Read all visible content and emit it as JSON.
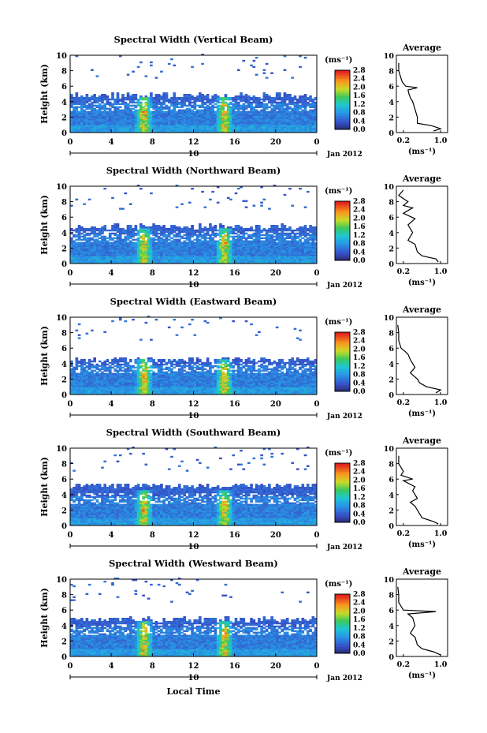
{
  "chart_data": [
    {
      "type": "heatmap",
      "title": "Spectral Width (Vertical Beam)",
      "ylabel": "Height (km)",
      "x_ticks": [
        "0",
        "4",
        "8",
        "12",
        "16",
        "20",
        "0"
      ],
      "y_ticks": [
        "0",
        "2",
        "4",
        "6",
        "8",
        "10"
      ],
      "xlim": [
        0,
        24
      ],
      "ylim": [
        0,
        10
      ],
      "date_marker": "10",
      "date_label": "Jan 2012",
      "colorbar_unit": "(ms⁻¹)",
      "colorbar_ticks": [
        "0.0",
        "0.4",
        "0.8",
        "1.2",
        "1.6",
        "2.0",
        "2.4",
        "2.8"
      ],
      "colorbar_range": [
        0,
        2.8
      ],
      "layer_top_km": 4.5,
      "convective_cells_hours": [
        7.2,
        15.0
      ],
      "average_profile": {
        "title": "Average",
        "xlabel": "(ms⁻¹)",
        "x_ticks": [
          "0.2",
          "1.0"
        ],
        "y_ticks": [
          "0",
          "2",
          "4",
          "6",
          "8",
          "10"
        ],
        "xlim": [
          0.05,
          1.15
        ],
        "ylim": [
          0,
          10
        ],
        "heights": [
          0.2,
          0.5,
          0.9,
          1.2,
          2.0,
          3.0,
          4.0,
          4.5,
          5.0,
          5.5,
          5.8,
          6.0,
          6.5,
          7.0,
          8.0,
          9.0
        ],
        "values": [
          0.85,
          1.0,
          0.8,
          0.5,
          0.5,
          0.45,
          0.4,
          0.35,
          0.32,
          0.3,
          0.5,
          0.25,
          0.18,
          0.15,
          0.1,
          0.1
        ]
      }
    },
    {
      "type": "heatmap",
      "title": "Spectral Width (Northward Beam)",
      "ylabel": "Height (km)",
      "x_ticks": [
        "0",
        "4",
        "8",
        "12",
        "16",
        "20",
        "0"
      ],
      "y_ticks": [
        "0",
        "2",
        "4",
        "6",
        "8",
        "10"
      ],
      "xlim": [
        0,
        24
      ],
      "ylim": [
        0,
        10
      ],
      "date_marker": "10",
      "date_label": "Jan 2012",
      "colorbar_unit": "(ms⁻¹)",
      "colorbar_ticks": [
        "0.0",
        "0.4",
        "0.8",
        "1.2",
        "1.6",
        "2.0",
        "2.4",
        "2.8"
      ],
      "colorbar_range": [
        0,
        2.8
      ],
      "layer_top_km": 4.5,
      "convective_cells_hours": [
        7.2,
        15.0
      ],
      "average_profile": {
        "title": "Average",
        "xlabel": "(ms⁻¹)",
        "x_ticks": [
          "0.2",
          "1.0"
        ],
        "y_ticks": [
          "0",
          "2",
          "4",
          "6",
          "8",
          "10"
        ],
        "xlim": [
          0.05,
          1.15
        ],
        "ylim": [
          0,
          10
        ],
        "heights": [
          0.2,
          0.6,
          1.0,
          1.5,
          2.5,
          3.0,
          4.0,
          5.0,
          5.8,
          6.5,
          7.2,
          7.5,
          8.0,
          8.8,
          9.5
        ],
        "values": [
          0.95,
          0.9,
          0.6,
          0.5,
          0.45,
          0.3,
          0.4,
          0.3,
          0.45,
          0.2,
          0.4,
          0.2,
          0.3,
          0.1,
          0.2
        ]
      }
    },
    {
      "type": "heatmap",
      "title": "Spectral Width (Eastward Beam)",
      "ylabel": "Height (km)",
      "x_ticks": [
        "0",
        "4",
        "8",
        "12",
        "16",
        "20",
        "0"
      ],
      "y_ticks": [
        "0",
        "2",
        "4",
        "6",
        "8",
        "10"
      ],
      "xlim": [
        0,
        24
      ],
      "ylim": [
        0,
        10
      ],
      "date_marker": "10",
      "date_label": "Jan 2012",
      "colorbar_unit": "(ms⁻¹)",
      "colorbar_ticks": [
        "0.0",
        "0.4",
        "0.8",
        "1.2",
        "1.6",
        "2.0",
        "2.4",
        "2.8"
      ],
      "colorbar_range": [
        0,
        2.8
      ],
      "layer_top_km": 4.2,
      "convective_cells_hours": [
        7.2,
        15.0
      ],
      "average_profile": {
        "title": "Average",
        "xlabel": "(ms⁻¹)",
        "x_ticks": [
          "0.2",
          "1.0"
        ],
        "y_ticks": [
          "0",
          "2",
          "4",
          "6",
          "8",
          "10"
        ],
        "xlim": [
          0.05,
          1.15
        ],
        "ylim": [
          0,
          10
        ],
        "heights": [
          0.2,
          0.6,
          1.0,
          1.5,
          2.0,
          2.8,
          3.5,
          4.0,
          4.5,
          5.2,
          5.5,
          6.0,
          7.0,
          8.0,
          9.0
        ],
        "values": [
          0.9,
          1.0,
          0.7,
          0.55,
          0.5,
          0.35,
          0.45,
          0.4,
          0.35,
          0.3,
          0.25,
          0.15,
          0.1,
          0.1,
          0.08
        ]
      }
    },
    {
      "type": "heatmap",
      "title": "Spectral Width (Southward Beam)",
      "ylabel": "Height (km)",
      "x_ticks": [
        "0",
        "4",
        "8",
        "12",
        "16",
        "20",
        "0"
      ],
      "y_ticks": [
        "0",
        "2",
        "4",
        "6",
        "8",
        "10"
      ],
      "xlim": [
        0,
        24
      ],
      "ylim": [
        0,
        10
      ],
      "date_marker": "10",
      "date_label": "Jan 2012",
      "colorbar_unit": "(ms⁻¹)",
      "colorbar_ticks": [
        "0.0",
        "0.4",
        "0.8",
        "1.2",
        "1.6",
        "2.0",
        "2.4",
        "2.8"
      ],
      "colorbar_range": [
        0,
        2.8
      ],
      "layer_top_km": 4.8,
      "convective_cells_hours": [
        7.2,
        15.0
      ],
      "average_profile": {
        "title": "Average",
        "xlabel": "(ms⁻¹)",
        "x_ticks": [
          "0.2",
          "1.0"
        ],
        "y_ticks": [
          "0",
          "2",
          "4",
          "6",
          "8",
          "10"
        ],
        "xlim": [
          0.05,
          1.15
        ],
        "ylim": [
          0,
          10
        ],
        "heights": [
          0.2,
          0.5,
          1.0,
          1.5,
          2.5,
          3.0,
          3.5,
          4.5,
          5.0,
          5.8,
          6.0,
          6.5,
          7.0,
          8.0,
          9.0
        ],
        "values": [
          0.95,
          0.85,
          0.6,
          0.55,
          0.45,
          0.35,
          0.5,
          0.4,
          0.45,
          0.2,
          0.4,
          0.15,
          0.2,
          0.1,
          0.1
        ]
      }
    },
    {
      "type": "heatmap",
      "title": "Spectral Width (Westward Beam)",
      "ylabel": "Height (km)",
      "xlabel": "Local Time",
      "x_ticks": [
        "0",
        "4",
        "8",
        "12",
        "16",
        "20",
        "0"
      ],
      "y_ticks": [
        "0",
        "2",
        "4",
        "6",
        "8",
        "10"
      ],
      "xlim": [
        0,
        24
      ],
      "ylim": [
        0,
        10
      ],
      "date_marker": "10",
      "date_label": "Jan 2012",
      "colorbar_unit": "(ms⁻¹)",
      "colorbar_ticks": [
        "0.0",
        "0.4",
        "0.8",
        "1.2",
        "1.6",
        "2.0",
        "2.4",
        "2.8"
      ],
      "colorbar_range": [
        0,
        2.8
      ],
      "layer_top_km": 4.5,
      "convective_cells_hours": [
        7.2,
        15.0
      ],
      "average_profile": {
        "title": "Average",
        "xlabel": "(ms⁻¹)",
        "x_ticks": [
          "0.2",
          "1.0"
        ],
        "y_ticks": [
          "0",
          "2",
          "4",
          "6",
          "8",
          "10"
        ],
        "xlim": [
          0.05,
          1.15
        ],
        "ylim": [
          0,
          10
        ],
        "heights": [
          0.2,
          0.6,
          1.0,
          1.5,
          2.5,
          3.0,
          4.0,
          5.0,
          5.5,
          5.8,
          6.0,
          6.5,
          7.0,
          8.0,
          9.0
        ],
        "values": [
          1.0,
          0.85,
          0.6,
          0.5,
          0.45,
          0.35,
          0.45,
          0.4,
          0.3,
          0.9,
          0.2,
          0.15,
          0.1,
          0.1,
          0.08
        ]
      }
    }
  ]
}
